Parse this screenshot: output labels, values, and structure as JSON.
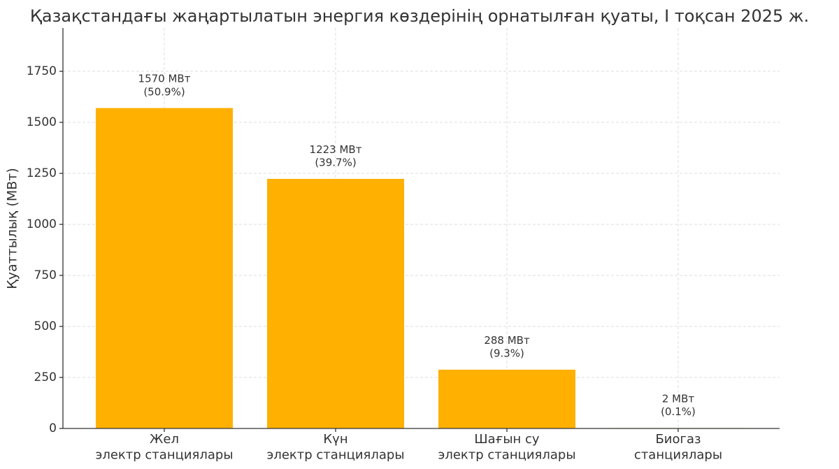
{
  "chart_data": {
    "type": "bar",
    "title": "Қазақстандағы жаңартылатын энергия көздерінің орнатылған қуаты, I тоқсан 2025 ж.",
    "y_label": "Қуаттылық (МВт)",
    "categories": [
      "Жел\nэлектр станциялары",
      "Күн\nэлектр станциялары",
      "Шағын су\nэлектр станциялары",
      "Биогаз\nстанциялары"
    ],
    "values": [
      1570,
      1223,
      288,
      2
    ],
    "value_labels": [
      "1570 МВт\n(50.9%)",
      "1223 МВт\n(39.7%)",
      "288 МВт\n(9.3%)",
      "2 МВт\n(0.1%)"
    ],
    "color": "#ffb000",
    "ylim": [
      0,
      1962.5
    ],
    "yticks": [
      0,
      250,
      500,
      750,
      1000,
      1250,
      1500,
      1750
    ],
    "grid": true
  }
}
